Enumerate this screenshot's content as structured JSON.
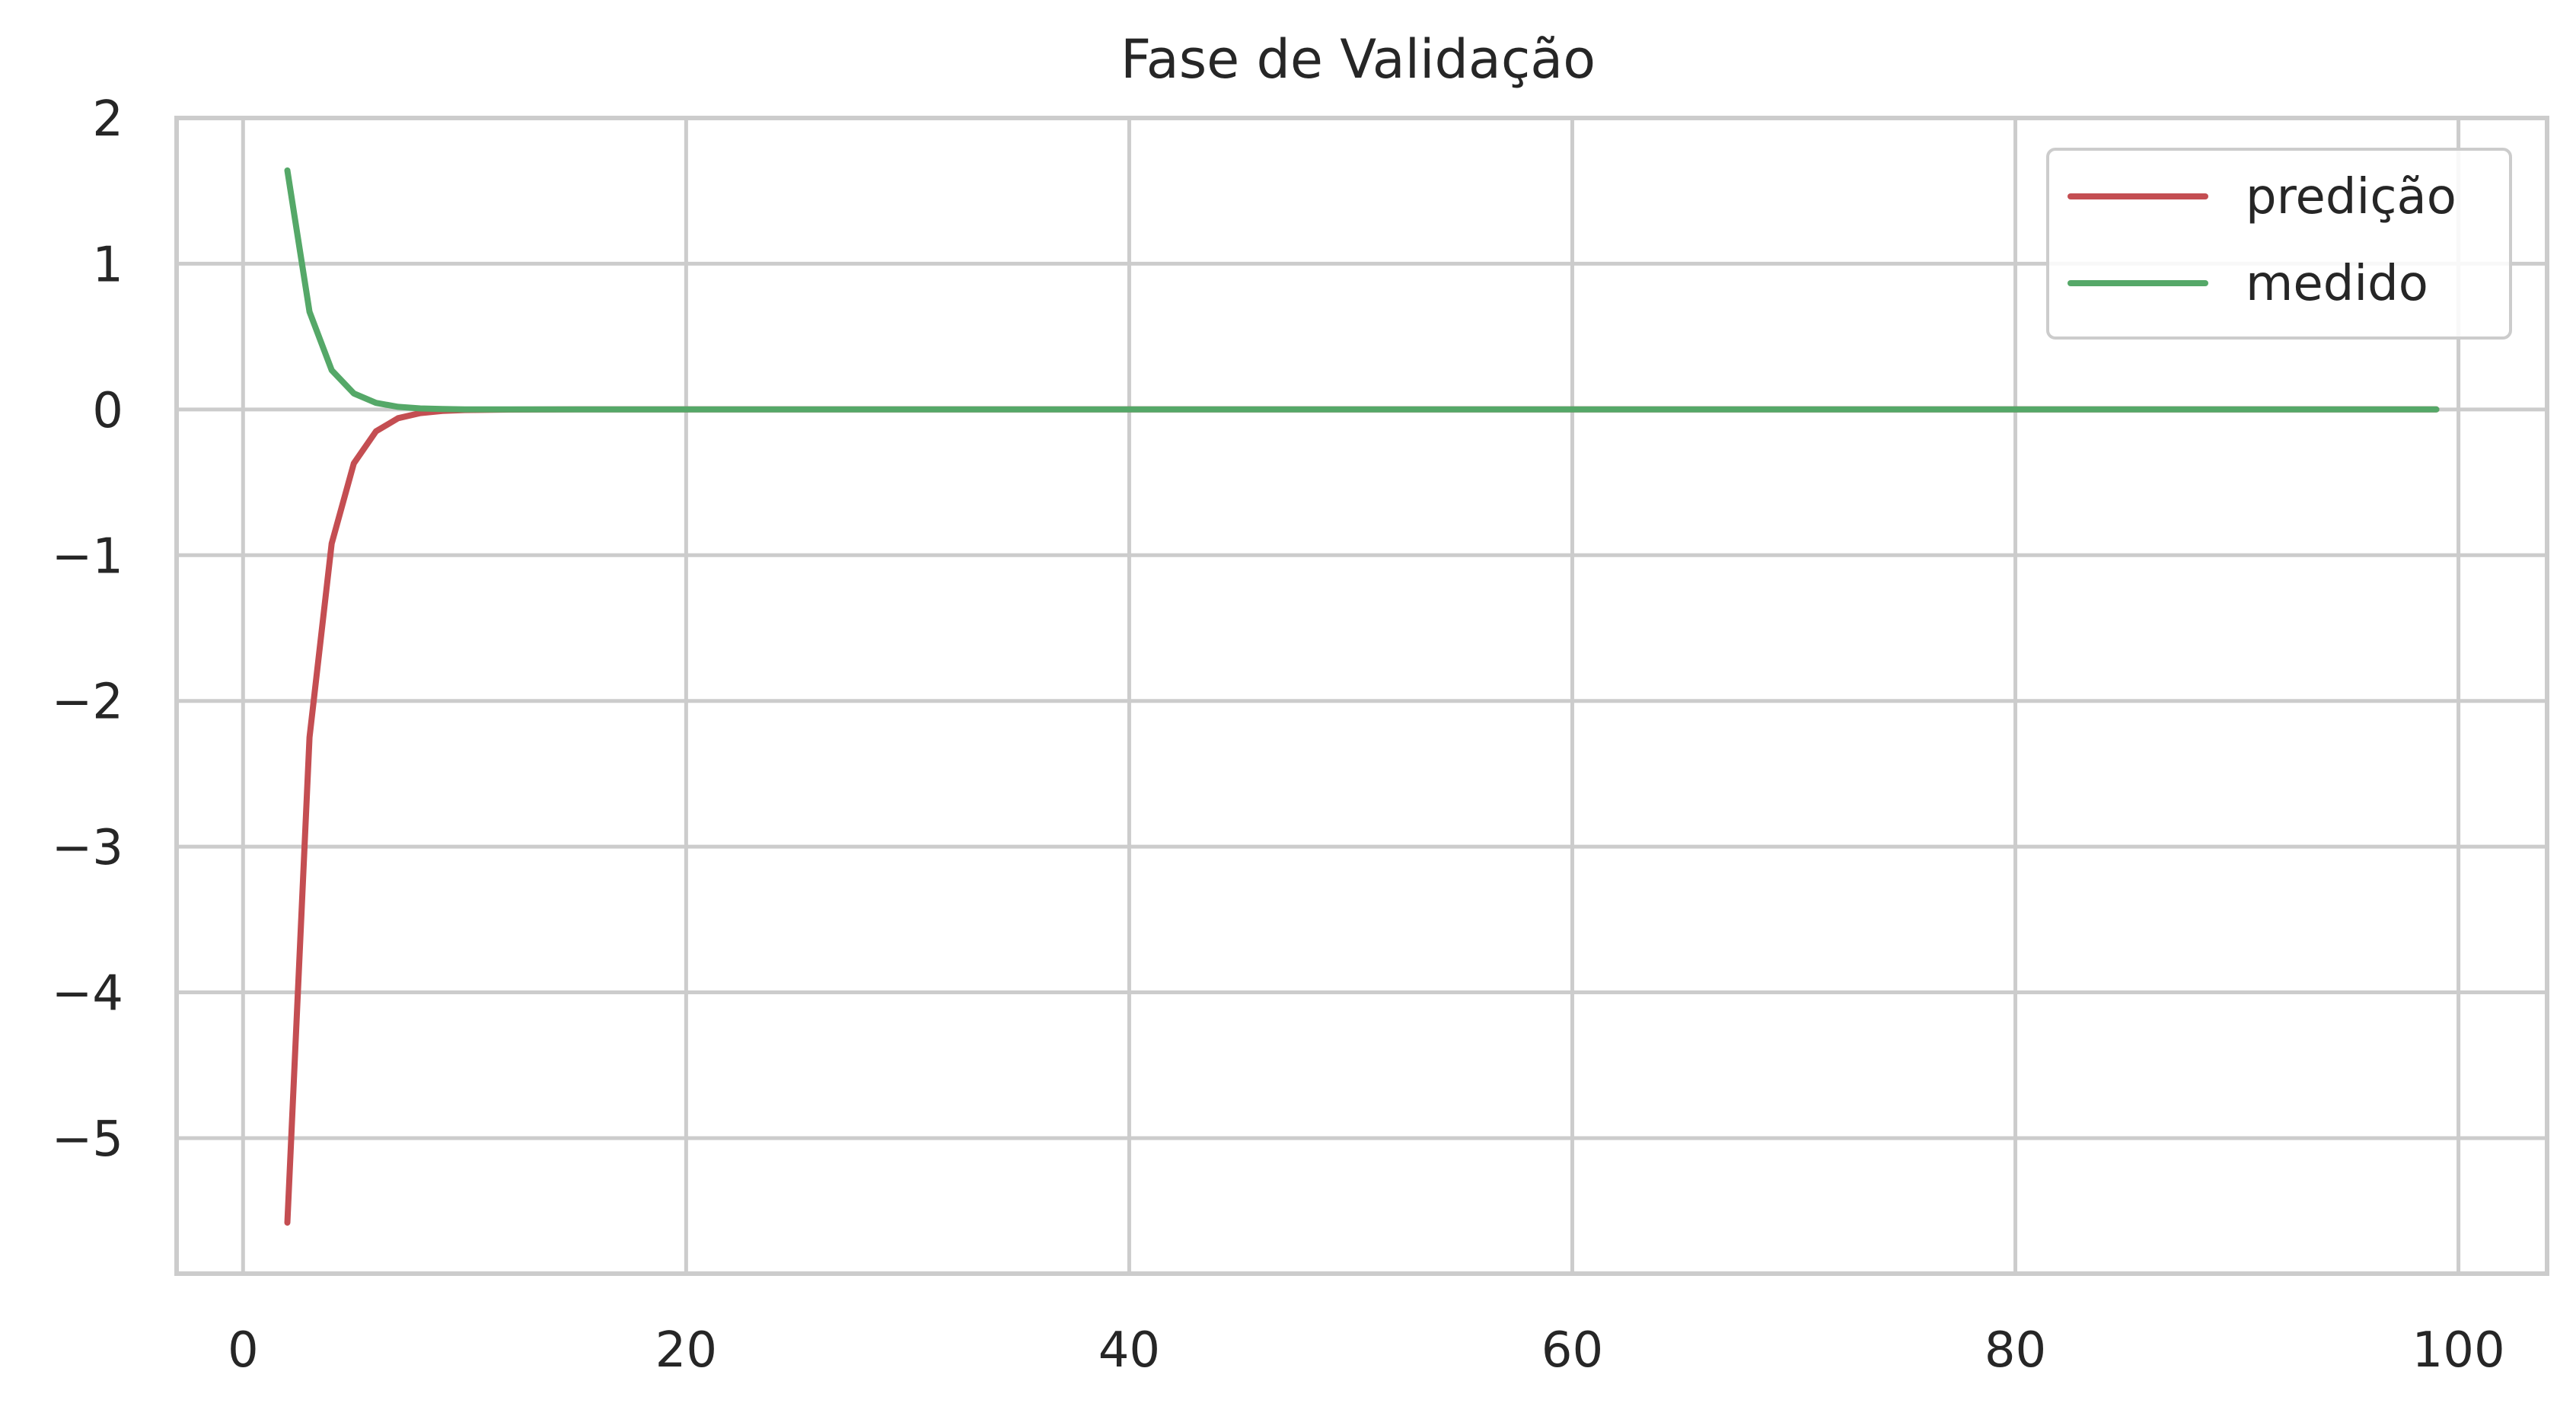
{
  "chart_data": {
    "type": "line",
    "title": "Fase de Validação",
    "xlabel": "",
    "ylabel": "",
    "xlim": [
      -3.0,
      104.0
    ],
    "ylim": [
      -5.93,
      2.0
    ],
    "x_ticks": [
      0,
      20,
      40,
      60,
      80,
      100
    ],
    "y_ticks": [
      2,
      1,
      0,
      -1,
      -2,
      -3,
      -4,
      -5
    ],
    "x_tick_labels": [
      "0",
      "20",
      "40",
      "60",
      "80",
      "100"
    ],
    "y_tick_labels": [
      "2",
      "1",
      "0",
      "−1",
      "−2",
      "−3",
      "−4",
      "−5"
    ],
    "grid": true,
    "legend_position": "top-right",
    "series": [
      {
        "name": "predição",
        "color": "#c44e52",
        "x": [
          2,
          3,
          4,
          5,
          6,
          7,
          8,
          9,
          10,
          12,
          15,
          20,
          30,
          40,
          50,
          60,
          70,
          80,
          90,
          99
        ],
        "y": [
          -5.58,
          -2.25,
          -0.92,
          -0.37,
          -0.15,
          -0.06,
          -0.025,
          -0.01,
          -0.004,
          -0.001,
          0,
          0,
          0,
          0,
          0,
          0,
          0,
          0,
          0,
          0
        ]
      },
      {
        "name": "medido",
        "color": "#55a868",
        "x": [
          2,
          3,
          4,
          5,
          6,
          7,
          8,
          9,
          10,
          12,
          15,
          20,
          30,
          40,
          50,
          60,
          70,
          80,
          90,
          99
        ],
        "y": [
          1.64,
          0.67,
          0.27,
          0.11,
          0.045,
          0.018,
          0.007,
          0.003,
          0.001,
          0,
          0,
          0,
          0,
          0,
          0,
          0,
          0,
          0,
          0,
          0
        ]
      }
    ]
  }
}
